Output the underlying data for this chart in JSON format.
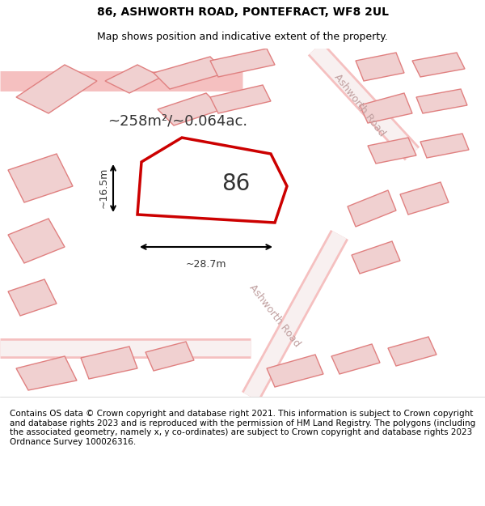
{
  "title_line1": "86, ASHWORTH ROAD, PONTEFRACT, WF8 2UL",
  "title_line2": "Map shows position and indicative extent of the property.",
  "footer_text": "Contains OS data © Crown copyright and database right 2021. This information is subject to Crown copyright and database rights 2023 and is reproduced with the permission of HM Land Registry. The polygons (including the associated geometry, namely x, y co-ordinates) are subject to Crown copyright and database rights 2023 Ordnance Survey 100026316.",
  "area_text": "~258m²/~0.064ac.",
  "label_86": "86",
  "dim_width": "~28.7m",
  "dim_height": "~16.5m",
  "bg_color": "#f5f0f0",
  "map_bg": "#ffffff",
  "road_color": "#f5c0c0",
  "building_color": "#f0d0d0",
  "building_edge": "#e08080",
  "highlight_color": "#cc0000",
  "highlight_fill": "none",
  "road_label": "Ashworth Road",
  "title_fontsize": 10,
  "subtitle_fontsize": 9,
  "footer_fontsize": 7.5
}
